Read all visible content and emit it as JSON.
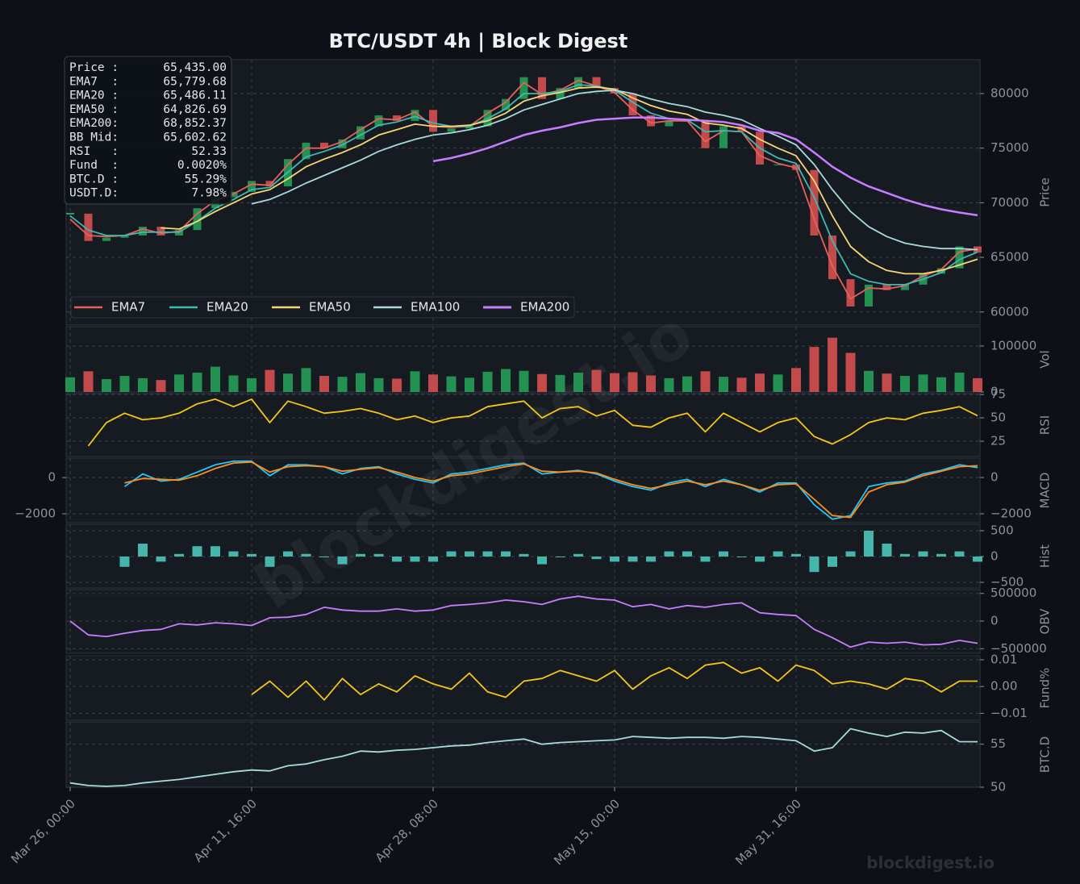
{
  "chart_data": {
    "type": "candlestick",
    "title": "BTC/USDT  4h  |  Block Digest",
    "grid": true,
    "legend": "lower left",
    "up_color": "#26a65b",
    "down_color": "#e05252",
    "x": [
      0,
      10,
      20,
      30,
      40,
      50,
      60,
      70,
      80,
      90,
      100,
      110,
      120,
      130,
      140,
      150,
      160,
      170,
      180,
      190,
      200,
      210,
      220,
      230,
      240,
      250,
      260,
      270,
      280,
      290,
      300,
      310,
      320,
      330,
      340,
      350,
      360,
      370,
      380,
      390,
      400,
      410,
      420,
      430,
      440,
      450,
      460,
      470,
      480,
      490,
      500
    ],
    "xlim": [
      0,
      500
    ],
    "xticks": [
      {
        "value": 0,
        "label": "Mar 26, 00:00"
      },
      {
        "value": 100,
        "label": "Apr 11, 16:00"
      },
      {
        "value": 200,
        "label": "Apr 28, 08:00"
      },
      {
        "value": 300,
        "label": "May 15, 00:00"
      },
      {
        "value": 400,
        "label": "May 31, 16:00"
      }
    ],
    "panels": [
      {
        "type": "candlestick",
        "ylabel": "Price",
        "ylim": [
          58800,
          83100
        ],
        "yticks": [
          60000,
          65000,
          70000,
          75000,
          80000
        ],
        "close": [
          69000,
          66500,
          66800,
          67000,
          67800,
          67000,
          67500,
          69500,
          70500,
          71000,
          72000,
          71500,
          74000,
          75500,
          75000,
          75800,
          77000,
          78000,
          77500,
          78500,
          76500,
          76800,
          77000,
          78500,
          79500,
          81500,
          79500,
          80500,
          81500,
          80500,
          80000,
          78000,
          77000,
          77500,
          77500,
          75000,
          77000,
          76500,
          73500,
          73500,
          73000,
          67000,
          63000,
          60500,
          62500,
          62000,
          62500,
          63500,
          64000,
          66000,
          65435
        ],
        "series": [
          {
            "name": "EMA7",
            "color": "#e8605a",
            "values": [
              68500,
              67000,
              66900,
              67000,
              67600,
              67200,
              67400,
              69000,
              70200,
              70800,
              71700,
              71600,
              73500,
              75000,
              75000,
              75600,
              76700,
              77700,
              77600,
              78300,
              77000,
              76900,
              77000,
              78200,
              79200,
              81000,
              79900,
              80300,
              81200,
              80700,
              80100,
              78500,
              77300,
              77500,
              77500,
              75600,
              76600,
              76500,
              74300,
              73600,
              73200,
              68500,
              64200,
              61200,
              62200,
              62100,
              62400,
              63300,
              63900,
              65500,
              65780
            ]
          },
          {
            "name": "EMA20",
            "color": "#3fb8af",
            "values": [
              68800,
              67500,
              67000,
              67000,
              67300,
              67300,
              67300,
              68300,
              69500,
              70300,
              71200,
              71400,
              72800,
              74200,
              74700,
              75300,
              76200,
              77100,
              77400,
              77900,
              77300,
              77000,
              77000,
              77700,
              78600,
              80000,
              80000,
              80200,
              80800,
              80700,
              80300,
              79200,
              78200,
              77700,
              77600,
              76500,
              76600,
              76500,
              75000,
              74100,
              73600,
              70500,
              66500,
              63500,
              62800,
              62500,
              62500,
              63000,
              63600,
              64800,
              65486
            ]
          },
          {
            "name": "EMA50",
            "color": "#f7d774",
            "values": [
              null,
              null,
              null,
              null,
              null,
              67700,
              67600,
              68300,
              69200,
              70000,
              70800,
              71200,
              72200,
              73300,
              74000,
              74600,
              75300,
              76200,
              76700,
              77200,
              77000,
              77000,
              77100,
              77500,
              78200,
              79300,
              79800,
              80100,
              80500,
              80600,
              80400,
              79600,
              78900,
              78400,
              78100,
              77300,
              77100,
              76800,
              75800,
              75000,
              74300,
              72000,
              68800,
              66000,
              64600,
              63800,
              63500,
              63500,
              63800,
              64300,
              64827
            ]
          },
          {
            "name": "EMA100",
            "color": "#a8dadc",
            "values": [
              null,
              null,
              null,
              null,
              null,
              null,
              null,
              null,
              null,
              null,
              69900,
              70300,
              71000,
              71800,
              72500,
              73200,
              73900,
              74700,
              75300,
              75800,
              76200,
              76400,
              76700,
              77100,
              77700,
              78500,
              79000,
              79500,
              80000,
              80200,
              80300,
              80000,
              79500,
              79100,
              78800,
              78300,
              78000,
              77600,
              76800,
              76100,
              75300,
              73500,
              71200,
              69200,
              67800,
              66900,
              66300,
              66000,
              65800,
              65800,
              65700
            ]
          },
          {
            "name": "EMA200",
            "color": "#c77dff",
            "values": [
              null,
              null,
              null,
              null,
              null,
              null,
              null,
              null,
              null,
              null,
              null,
              null,
              null,
              null,
              null,
              null,
              null,
              null,
              null,
              null,
              73800,
              74100,
              74500,
              75000,
              75600,
              76200,
              76600,
              76900,
              77300,
              77600,
              77700,
              77800,
              77800,
              77700,
              77600,
              77500,
              77400,
              77100,
              76600,
              76400,
              75800,
              74600,
              73300,
              72300,
              71500,
              70900,
              70300,
              69800,
              69400,
              69100,
              68852
            ]
          }
        ]
      },
      {
        "type": "bar",
        "ylabel": "Vol",
        "ylim": [
          0,
          142000
        ],
        "yticks": [
          0,
          100000
        ],
        "values": [
          32000,
          45000,
          28000,
          35000,
          30000,
          26000,
          38000,
          42000,
          55000,
          36000,
          30000,
          48000,
          40000,
          52000,
          35000,
          33000,
          41000,
          30000,
          29000,
          45000,
          38000,
          34000,
          31000,
          44000,
          50000,
          46000,
          39000,
          37000,
          42000,
          48000,
          41000,
          43000,
          36000,
          30000,
          34000,
          45000,
          33000,
          31000,
          40000,
          38000,
          52000,
          98000,
          118000,
          85000,
          46000,
          40000,
          35000,
          38000,
          32000,
          42000,
          30000
        ]
      },
      {
        "type": "line",
        "ylabel": "RSI",
        "ylim": [
          8.6,
          76
        ],
        "yticks": [
          25,
          50,
          75
        ],
        "series": [
          {
            "color": "#f5c518",
            "values": [
              null,
              20,
              45,
              55,
              48,
              50,
              55,
              65,
              70,
              62,
              70,
              45,
              68,
              62,
              55,
              57,
              60,
              55,
              48,
              52,
              45,
              50,
              52,
              62,
              65,
              68,
              50,
              60,
              62,
              52,
              58,
              42,
              40,
              50,
              55,
              35,
              55,
              45,
              35,
              45,
              50,
              30,
              22,
              32,
              45,
              50,
              48,
              55,
              58,
              62,
              52.33
            ]
          }
        ]
      },
      {
        "type": "line",
        "ylabel": "MACD",
        "ylim": [
          -2490,
          1070
        ],
        "yticks": [
          {
            "value": -2000,
            "label": "−2000"
          },
          0
        ],
        "left_yticks": [
          {
            "value": -2000,
            "label": "−2000"
          },
          0
        ],
        "series": [
          {
            "color": "#1ec8ff",
            "values": [
              null,
              null,
              null,
              -500,
              200,
              -200,
              -100,
              300,
              700,
              900,
              900,
              100,
              700,
              700,
              600,
              200,
              500,
              600,
              200,
              -100,
              -300,
              200,
              300,
              500,
              700,
              800,
              200,
              300,
              400,
              200,
              -200,
              -500,
              -700,
              -300,
              -100,
              -500,
              -100,
              -400,
              -800,
              -300,
              -300,
              -1500,
              -2300,
              -2100,
              -500,
              -300,
              -200,
              200,
              400,
              700,
              550
            ]
          },
          {
            "color": "#ff8c1a",
            "values": [
              null,
              null,
              null,
              -300,
              -50,
              -100,
              -150,
              100,
              500,
              800,
              850,
              300,
              600,
              650,
              600,
              350,
              450,
              550,
              300,
              0,
              -200,
              100,
              200,
              400,
              600,
              750,
              350,
              300,
              350,
              250,
              -100,
              -400,
              -600,
              -400,
              -200,
              -400,
              -200,
              -400,
              -700,
              -400,
              -350,
              -1200,
              -2100,
              -2200,
              -800,
              -400,
              -250,
              100,
              350,
              600,
              650
            ]
          }
        ]
      },
      {
        "type": "bar",
        "ylabel": "Hist",
        "ylim": [
          -610,
          625
        ],
        "yticks": [
          {
            "value": -500,
            "label": "−500"
          },
          0,
          500
        ],
        "color": "#4fd1c5",
        "values": [
          null,
          null,
          null,
          -200,
          250,
          -100,
          50,
          200,
          200,
          100,
          50,
          -200,
          100,
          50,
          0,
          -150,
          50,
          50,
          -100,
          -100,
          -100,
          100,
          100,
          100,
          100,
          50,
          -150,
          0,
          50,
          -50,
          -100,
          -100,
          -100,
          100,
          100,
          -100,
          100,
          0,
          -100,
          100,
          50,
          -300,
          -200,
          100,
          500,
          250,
          50,
          100,
          50,
          100,
          -100
        ]
      },
      {
        "type": "line",
        "ylabel": "OBV",
        "ylim": [
          -583000,
          569000
        ],
        "yticks": [
          {
            "value": -500000,
            "label": "−500000"
          },
          0,
          500000
        ],
        "series": [
          {
            "color": "#c77dff",
            "values": [
              0,
              -250000,
              -280000,
              -220000,
              -170000,
              -150000,
              -50000,
              -70000,
              -30000,
              -50000,
              -80000,
              60000,
              70000,
              120000,
              250000,
              200000,
              180000,
              180000,
              220000,
              180000,
              200000,
              280000,
              300000,
              330000,
              380000,
              350000,
              300000,
              400000,
              450000,
              400000,
              380000,
              260000,
              300000,
              220000,
              280000,
              250000,
              300000,
              330000,
              150000,
              120000,
              100000,
              -150000,
              -300000,
              -470000,
              -380000,
              -400000,
              -380000,
              -430000,
              -420000,
              -350000,
              -400000
            ]
          }
        ]
      },
      {
        "type": "line",
        "ylabel": "Fund%",
        "ylim": [
          -0.0126,
          0.0115
        ],
        "yticks": [
          {
            "value": -0.01,
            "label": "−0.01"
          },
          {
            "value": 0,
            "label": "0.00"
          },
          0.01
        ],
        "series": [
          {
            "color": "#f5c518",
            "values": [
              null,
              null,
              null,
              null,
              null,
              null,
              null,
              null,
              null,
              null,
              -0.003,
              0.002,
              -0.004,
              0.002,
              -0.005,
              0.003,
              -0.003,
              0.001,
              -0.002,
              0.004,
              0.001,
              -0.001,
              0.005,
              -0.002,
              -0.004,
              0.002,
              0.003,
              0.006,
              0.004,
              0.002,
              0.006,
              -0.001,
              0.004,
              0.007,
              0.003,
              0.008,
              0.009,
              0.005,
              0.007,
              0.002,
              0.008,
              0.006,
              0.001,
              0.002,
              0.001,
              -0.001,
              0.003,
              0.002,
              -0.002,
              0.002,
              0.002
            ]
          }
        ]
      },
      {
        "type": "line",
        "ylabel": "BTC.D",
        "ylim": [
          50,
          57.6
        ],
        "yticks": [
          50,
          55
        ],
        "series": [
          {
            "color": "#a8dadc",
            "values": [
              50.5,
              50.2,
              50.1,
              50.2,
              50.5,
              50.7,
              50.9,
              51.2,
              51.5,
              51.8,
              52.0,
              51.9,
              52.5,
              52.7,
              53.2,
              53.6,
              54.2,
              54.1,
              54.3,
              54.4,
              54.6,
              54.8,
              54.9,
              55.2,
              55.4,
              55.6,
              55.0,
              55.2,
              55.3,
              55.4,
              55.5,
              55.9,
              55.8,
              55.7,
              55.8,
              55.8,
              55.7,
              55.9,
              55.8,
              55.6,
              55.4,
              54.2,
              54.6,
              56.8,
              56.3,
              55.9,
              56.4,
              56.3,
              56.6,
              55.3,
              55.29
            ]
          }
        ]
      }
    ],
    "info_box": [
      [
        "Price :",
        "65,435.00"
      ],
      [
        "EMA7  :",
        "65,779.68"
      ],
      [
        "EMA20 :",
        "65,486.11"
      ],
      [
        "EMA50 :",
        "64,826.69"
      ],
      [
        "EMA200:",
        "68,852.37"
      ],
      [
        "BB Mid:",
        "65,602.62"
      ],
      [
        "RSI   :",
        "52.33"
      ],
      [
        "Fund  :",
        "0.0020%"
      ],
      [
        "BTC.D :",
        "55.29%"
      ],
      [
        "USDT.D:",
        "7.98%"
      ]
    ],
    "watermark": "blockdigest.io",
    "credit": "blockdigest.io"
  }
}
